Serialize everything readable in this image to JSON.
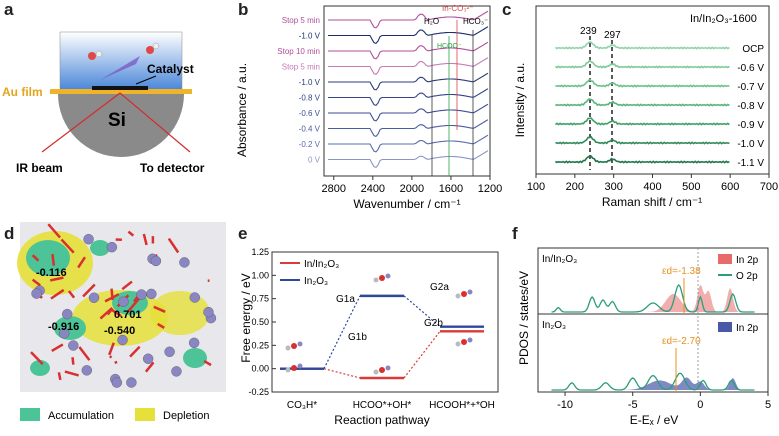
{
  "panel_labels": {
    "a": "a",
    "b": "b",
    "c": "c",
    "d": "d",
    "e": "e",
    "f": "f"
  },
  "panel_a": {
    "au_film": "Au film",
    "catalyst": "Catalyst",
    "substrate": "Si",
    "ir_beam": "IR beam",
    "to_detector": "To detector"
  },
  "chart_data": [
    {
      "panel": "b",
      "type": "line",
      "xlabel": "Wavenumber / cm⁻¹",
      "ylabel": "Absorbance / a.u.",
      "xlim": [
        2900,
        1200
      ],
      "xticks": [
        "2800",
        "2400",
        "2000",
        "1600",
        "1200"
      ],
      "series": [
        {
          "name": "Stop 5 min",
          "color": "#b0509a"
        },
        {
          "name": "-1.0 V",
          "color": "#1b2f6e"
        },
        {
          "name": "Stop 10 min",
          "color": "#b0509a"
        },
        {
          "name": "Stop 5 min ",
          "color": "#c77bb6"
        },
        {
          "name": "-1.0 V ",
          "color": "#2c3c78"
        },
        {
          "name": "-0.8 V",
          "color": "#34448a"
        },
        {
          "name": "-0.6 V",
          "color": "#3e4f96"
        },
        {
          "name": "-0.4 V",
          "color": "#4a5ca2"
        },
        {
          "name": "-0.2 V",
          "color": "#5a6cb0"
        },
        {
          "name": "0 V",
          "color": "#8a96c8"
        }
      ],
      "annotations": [
        "H₂O",
        "In-CO₃²⁻",
        "HCO₃⁻",
        "HCOO⁻"
      ]
    },
    {
      "panel": "c",
      "type": "line",
      "title": "In/In₂O₃-1600",
      "xlabel": "Raman shift / cm⁻¹",
      "ylabel": "Intensity / a.u.",
      "xlim": [
        100,
        700
      ],
      "xticks": [
        "100",
        "200",
        "300",
        "400",
        "500",
        "600",
        "700"
      ],
      "peaks": [
        "239",
        "297"
      ],
      "series": [
        {
          "name": "OCP",
          "color": "#8fd4a8"
        },
        {
          "name": "-0.6 V",
          "color": "#7ccb98"
        },
        {
          "name": "-0.7 V",
          "color": "#6bc08a"
        },
        {
          "name": "-0.8 V",
          "color": "#57b47b"
        },
        {
          "name": "-0.9 V",
          "color": "#3f9f68"
        },
        {
          "name": "-1.0 V",
          "color": "#2e8a58"
        },
        {
          "name": "-1.1 V",
          "color": "#1f7549"
        }
      ]
    },
    {
      "panel": "e",
      "type": "line",
      "xlabel": "Reaction pathway",
      "ylabel": "Free energy / eV",
      "ylim": [
        -0.25,
        1.25
      ],
      "yticks": [
        "1.25",
        "1.00",
        "0.75",
        "0.50",
        "0.25",
        "0.00",
        "-0.25"
      ],
      "categories": [
        "CO₃H*",
        "HCOO*+OH*",
        "HCOOH*+*OH"
      ],
      "series": [
        {
          "name": "In/In₂O₃",
          "color": "#d93a3a",
          "values": [
            0.0,
            -0.1,
            0.4
          ]
        },
        {
          "name": "In₂O₃",
          "color": "#2c4a9a",
          "values": [
            0.0,
            0.78,
            0.45
          ]
        }
      ],
      "steps": [
        "G1a",
        "G1b",
        "G2a",
        "G2b"
      ]
    },
    {
      "panel": "f",
      "type": "area",
      "xlabel": "E-Eₓ / eV",
      "ylabel": "PDOS / states/eV",
      "xlim": [
        -12,
        5
      ],
      "xticks": [
        "-10",
        "-5",
        "0",
        "5"
      ],
      "subplots": [
        {
          "title": "In/In₂O₃",
          "d_band": "εd=-1.38",
          "legend": [
            "In 2p",
            "O 2p"
          ],
          "colors": [
            "#e86a6a",
            "#2a9d7c"
          ]
        },
        {
          "title": "In₂O₃",
          "d_band": "εd=-2.70",
          "legend": [
            "In 2p"
          ],
          "colors": [
            "#4a58a8"
          ]
        }
      ]
    }
  ],
  "panel_d": {
    "charges": [
      "-0.116",
      "0.701",
      "-0.916",
      "-0.540"
    ],
    "legend": [
      "Accumulation",
      "Depletion"
    ],
    "colors": {
      "accumulation": "#4cc497",
      "depletion": "#e6e03a"
    }
  }
}
